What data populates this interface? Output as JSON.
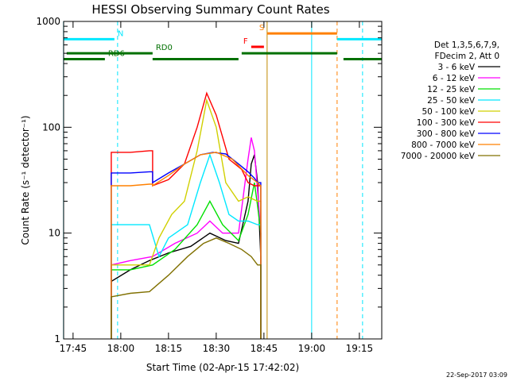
{
  "chart_data": {
    "type": "line",
    "title": "HESSI Observing Summary Count Rates",
    "xlabel": "Start Time (02-Apr-15 17:42:02)",
    "ylabel": "Count Rate (s⁻¹ detector⁻¹)",
    "xlim": [
      "17:42:02",
      "19:22:02"
    ],
    "ylim": [
      1,
      1000
    ],
    "yscale": "log",
    "x_ticks": [
      "17:45",
      "18:00",
      "18:15",
      "18:30",
      "18:45",
      "19:00",
      "19:15"
    ],
    "y_ticks": [
      "1",
      "10",
      "100",
      "1000"
    ],
    "grid": false,
    "legend_position": "right",
    "legend_header": [
      "Det 1,3,5,6,7,9,",
      "FDecim 2, Att 0"
    ],
    "timestamp": "22-Sep-2017 03:09",
    "flags": [
      {
        "label": "N",
        "color": "#00e8ff",
        "y": 680,
        "spans": [
          [
            "17:42",
            "17:58"
          ],
          [
            "19:08",
            "19:22"
          ]
        ]
      },
      {
        "label": "RD0",
        "color": "#007000",
        "y": 500,
        "spans": [
          [
            "17:43",
            "18:10"
          ],
          [
            "18:38",
            "19:08"
          ]
        ]
      },
      {
        "label": "RD6",
        "color": "#007000",
        "y": 440,
        "spans": [
          [
            "17:42",
            "17:55"
          ],
          [
            "18:10",
            "18:37"
          ],
          [
            "19:10",
            "19:22"
          ]
        ]
      },
      {
        "label": "F",
        "color": "#ff0000",
        "y": 575,
        "spans": [
          [
            "18:41",
            "18:45"
          ]
        ]
      },
      {
        "label": "S",
        "color": "#ff8000",
        "y": 770,
        "spans": [
          [
            "18:46",
            "19:08"
          ]
        ]
      }
    ],
    "vlines": [
      {
        "time": "17:42",
        "color": "#00e8ff",
        "style": "solid"
      },
      {
        "time": "17:59",
        "color": "#00e8ff",
        "style": "dashed"
      },
      {
        "time": "18:46",
        "color": "#c08800",
        "style": "solid"
      },
      {
        "time": "19:00",
        "color": "#00e8ff",
        "style": "solid"
      },
      {
        "time": "19:08",
        "color": "#ff8000",
        "style": "dashed"
      },
      {
        "time": "19:16",
        "color": "#00e8ff",
        "style": "dashed"
      }
    ],
    "series": [
      {
        "name": "3 - 6 keV",
        "color": "#000000",
        "points": [
          [
            "17:57",
            1
          ],
          [
            "17:57",
            3.5
          ],
          [
            "18:03",
            4.5
          ],
          [
            "18:09",
            5.5
          ],
          [
            "18:15",
            6.5
          ],
          [
            "18:22",
            7.5
          ],
          [
            "18:28",
            10
          ],
          [
            "18:33",
            8.5
          ],
          [
            "18:37",
            8
          ],
          [
            "18:40",
            20
          ],
          [
            "18:41",
            45
          ],
          [
            "18:42",
            55
          ],
          [
            "18:43",
            30
          ],
          [
            "18:44",
            6
          ],
          [
            "18:44",
            1
          ]
        ]
      },
      {
        "name": "6 - 12 keV",
        "color": "#ff00ff",
        "points": [
          [
            "17:57",
            1
          ],
          [
            "17:57",
            5
          ],
          [
            "18:03",
            5.5
          ],
          [
            "18:10",
            6
          ],
          [
            "18:17",
            8
          ],
          [
            "18:24",
            10
          ],
          [
            "18:28",
            13
          ],
          [
            "18:32",
            10
          ],
          [
            "18:37",
            10
          ],
          [
            "18:40",
            50
          ],
          [
            "18:41",
            80
          ],
          [
            "18:42",
            60
          ],
          [
            "18:43",
            25
          ],
          [
            "18:44",
            10
          ],
          [
            "18:44",
            1
          ]
        ]
      },
      {
        "name": "12 - 25 keV",
        "color": "#00e000",
        "points": [
          [
            "17:57",
            1
          ],
          [
            "17:57",
            4.5
          ],
          [
            "18:03",
            4.5
          ],
          [
            "18:10",
            5
          ],
          [
            "18:17",
            7
          ],
          [
            "18:24",
            12
          ],
          [
            "18:28",
            20
          ],
          [
            "18:32",
            12
          ],
          [
            "18:37",
            8.5
          ],
          [
            "18:40",
            15
          ],
          [
            "18:42",
            30
          ],
          [
            "18:43",
            18
          ],
          [
            "18:44",
            10
          ],
          [
            "18:44",
            1
          ]
        ]
      },
      {
        "name": "25 - 50 keV",
        "color": "#00e8ff",
        "points": [
          [
            "17:57",
            1
          ],
          [
            "17:57",
            12
          ],
          [
            "18:03",
            12
          ],
          [
            "18:09",
            12
          ],
          [
            "18:12",
            6
          ],
          [
            "18:15",
            9
          ],
          [
            "18:21",
            12
          ],
          [
            "18:25",
            30
          ],
          [
            "18:28",
            55
          ],
          [
            "18:31",
            30
          ],
          [
            "18:34",
            15
          ],
          [
            "18:37",
            13
          ],
          [
            "18:40",
            13
          ],
          [
            "18:43",
            12
          ],
          [
            "18:44",
            12
          ],
          [
            "18:44",
            1
          ]
        ]
      },
      {
        "name": "50 - 100 keV",
        "color": "#d0d000",
        "points": [
          [
            "17:57",
            1
          ],
          [
            "17:57",
            5
          ],
          [
            "18:03",
            5
          ],
          [
            "18:09",
            5
          ],
          [
            "18:12",
            9
          ],
          [
            "18:16",
            15
          ],
          [
            "18:20",
            20
          ],
          [
            "18:24",
            60
          ],
          [
            "18:27",
            180
          ],
          [
            "18:30",
            100
          ],
          [
            "18:33",
            30
          ],
          [
            "18:37",
            20
          ],
          [
            "18:40",
            22
          ],
          [
            "18:43",
            20
          ],
          [
            "18:44",
            20
          ],
          [
            "18:44",
            1
          ]
        ]
      },
      {
        "name": "100 - 300 keV",
        "color": "#ff0000",
        "points": [
          [
            "17:57",
            1
          ],
          [
            "17:57",
            58
          ],
          [
            "18:03",
            58
          ],
          [
            "18:09",
            60
          ],
          [
            "18:10",
            60
          ],
          [
            "18:10",
            28
          ],
          [
            "18:15",
            32
          ],
          [
            "18:20",
            45
          ],
          [
            "18:24",
            100
          ],
          [
            "18:27",
            210
          ],
          [
            "18:30",
            130
          ],
          [
            "18:34",
            50
          ],
          [
            "18:38",
            40
          ],
          [
            "18:40",
            30
          ],
          [
            "18:42",
            28
          ],
          [
            "18:43",
            28
          ],
          [
            "18:44",
            28
          ],
          [
            "18:44",
            1
          ]
        ]
      },
      {
        "name": "300 - 800 keV",
        "color": "#0000ff",
        "points": [
          [
            "17:57",
            1
          ],
          [
            "17:57",
            37
          ],
          [
            "18:03",
            37
          ],
          [
            "18:09",
            38
          ],
          [
            "18:10",
            38
          ],
          [
            "18:10",
            30
          ],
          [
            "18:15",
            37
          ],
          [
            "18:20",
            45
          ],
          [
            "18:25",
            55
          ],
          [
            "18:29",
            58
          ],
          [
            "18:33",
            56
          ],
          [
            "18:37",
            45
          ],
          [
            "18:40",
            38
          ],
          [
            "18:42",
            33
          ],
          [
            "18:43",
            30
          ],
          [
            "18:44",
            30
          ],
          [
            "18:44",
            1
          ]
        ]
      },
      {
        "name": "800 - 7000 keV",
        "color": "#ff8000",
        "points": [
          [
            "17:57",
            1
          ],
          [
            "17:57",
            28
          ],
          [
            "18:03",
            28
          ],
          [
            "18:09",
            29
          ],
          [
            "18:10",
            29
          ],
          [
            "18:10",
            28
          ],
          [
            "18:15",
            35
          ],
          [
            "18:20",
            45
          ],
          [
            "18:25",
            55
          ],
          [
            "18:30",
            58
          ],
          [
            "18:35",
            50
          ],
          [
            "18:40",
            35
          ],
          [
            "18:43",
            30
          ],
          [
            "18:44",
            28
          ],
          [
            "18:44",
            1
          ]
        ]
      },
      {
        "name": "7000 - 20000 keV",
        "color": "#807000",
        "points": [
          [
            "17:57",
            1
          ],
          [
            "17:57",
            2.5
          ],
          [
            "18:03",
            2.7
          ],
          [
            "18:09",
            2.8
          ],
          [
            "18:15",
            4
          ],
          [
            "18:21",
            6
          ],
          [
            "18:26",
            8
          ],
          [
            "18:30",
            9
          ],
          [
            "18:34",
            8
          ],
          [
            "18:38",
            7
          ],
          [
            "18:41",
            6
          ],
          [
            "18:43",
            5
          ],
          [
            "18:44",
            5
          ],
          [
            "18:44",
            1
          ]
        ]
      }
    ]
  }
}
